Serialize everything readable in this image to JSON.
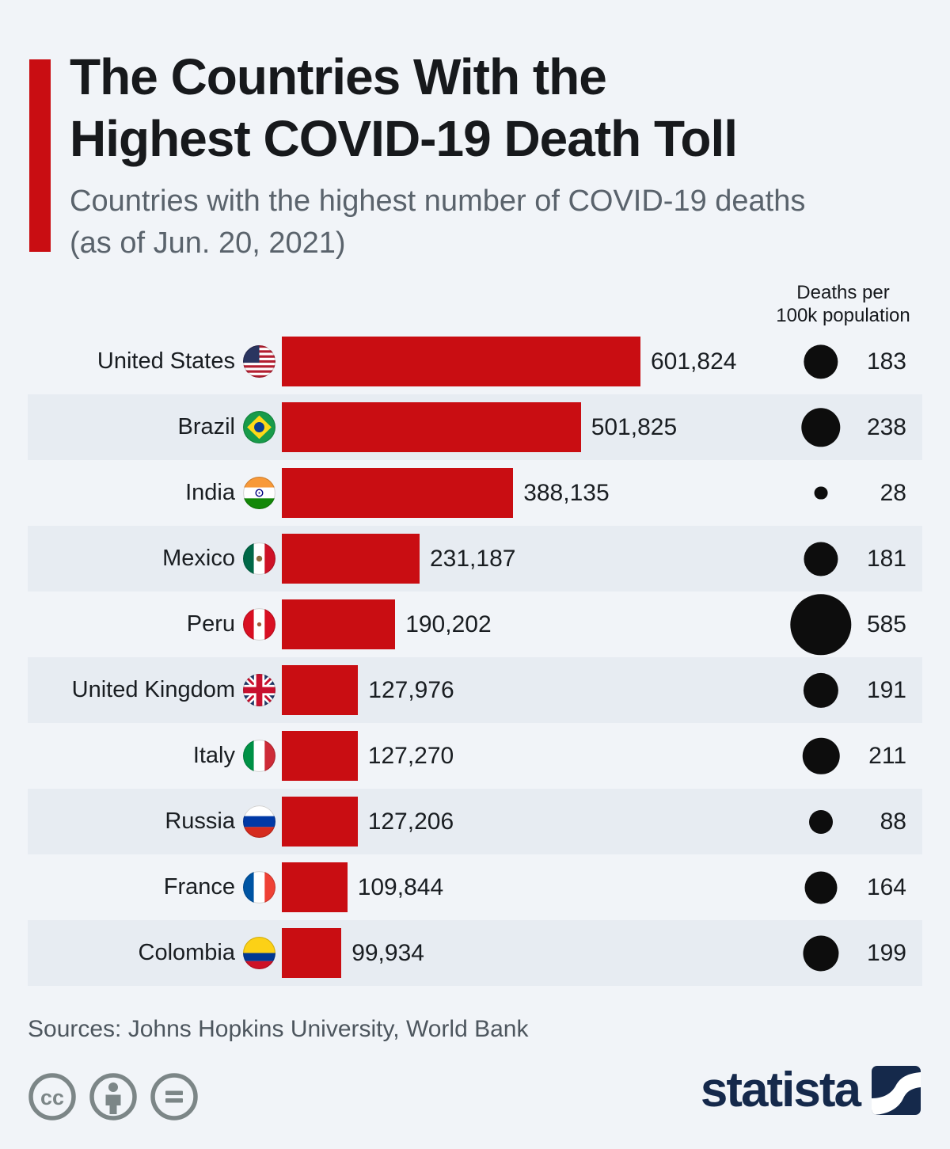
{
  "colors": {
    "background": "#f1f4f8",
    "row_stripe": "#e7ecf2",
    "accent_red": "#c90d12",
    "bar_red": "#c90d12",
    "circle_black": "#0d0d0d",
    "brand_navy": "#15294b",
    "license_gray": "#7c8687"
  },
  "header": {
    "title_lines": [
      "The Countries With the",
      "Highest COVID-19 Death Toll"
    ],
    "subtitle_lines": [
      "Countries with the highest number of COVID-19 deaths",
      "(as of Jun. 20, 2021)"
    ]
  },
  "chart_data": {
    "type": "bar",
    "title": "The Countries With the Highest COVID-19 Death Toll",
    "subtitle": "Countries with the highest number of COVID-19 deaths (as of Jun. 20, 2021)",
    "column_header_lines": [
      "Deaths per",
      "100k population"
    ],
    "orientation": "horizontal",
    "xlim": [
      0,
      601824
    ],
    "bubble_metric": "deaths per 100k population",
    "rows": [
      {
        "country": "United States",
        "flag": "us",
        "deaths": 601824,
        "deaths_label": "601,824",
        "per_100k": 183
      },
      {
        "country": "Brazil",
        "flag": "brazil",
        "deaths": 501825,
        "deaths_label": "501,825",
        "per_100k": 238
      },
      {
        "country": "India",
        "flag": "india",
        "deaths": 388135,
        "deaths_label": "388,135",
        "per_100k": 28
      },
      {
        "country": "Mexico",
        "flag": "mexico",
        "deaths": 231187,
        "deaths_label": "231,187",
        "per_100k": 181
      },
      {
        "country": "Peru",
        "flag": "peru",
        "deaths": 190202,
        "deaths_label": "190,202",
        "per_100k": 585
      },
      {
        "country": "United Kingdom",
        "flag": "uk",
        "deaths": 127976,
        "deaths_label": "127,976",
        "per_100k": 191
      },
      {
        "country": "Italy",
        "flag": "italy",
        "deaths": 127270,
        "deaths_label": "127,270",
        "per_100k": 211
      },
      {
        "country": "Russia",
        "flag": "russia",
        "deaths": 127206,
        "deaths_label": "127,206",
        "per_100k": 88
      },
      {
        "country": "France",
        "flag": "france",
        "deaths": 109844,
        "deaths_label": "109,844",
        "per_100k": 164
      },
      {
        "country": "Colombia",
        "flag": "colombia",
        "deaths": 99934,
        "deaths_label": "99,934",
        "per_100k": 199
      }
    ]
  },
  "footer": {
    "sources": "Sources: Johns Hopkins University, World Bank",
    "license_icons": [
      "cc-icon",
      "attribution-icon",
      "no-derivatives-icon"
    ],
    "brand": "statista"
  }
}
